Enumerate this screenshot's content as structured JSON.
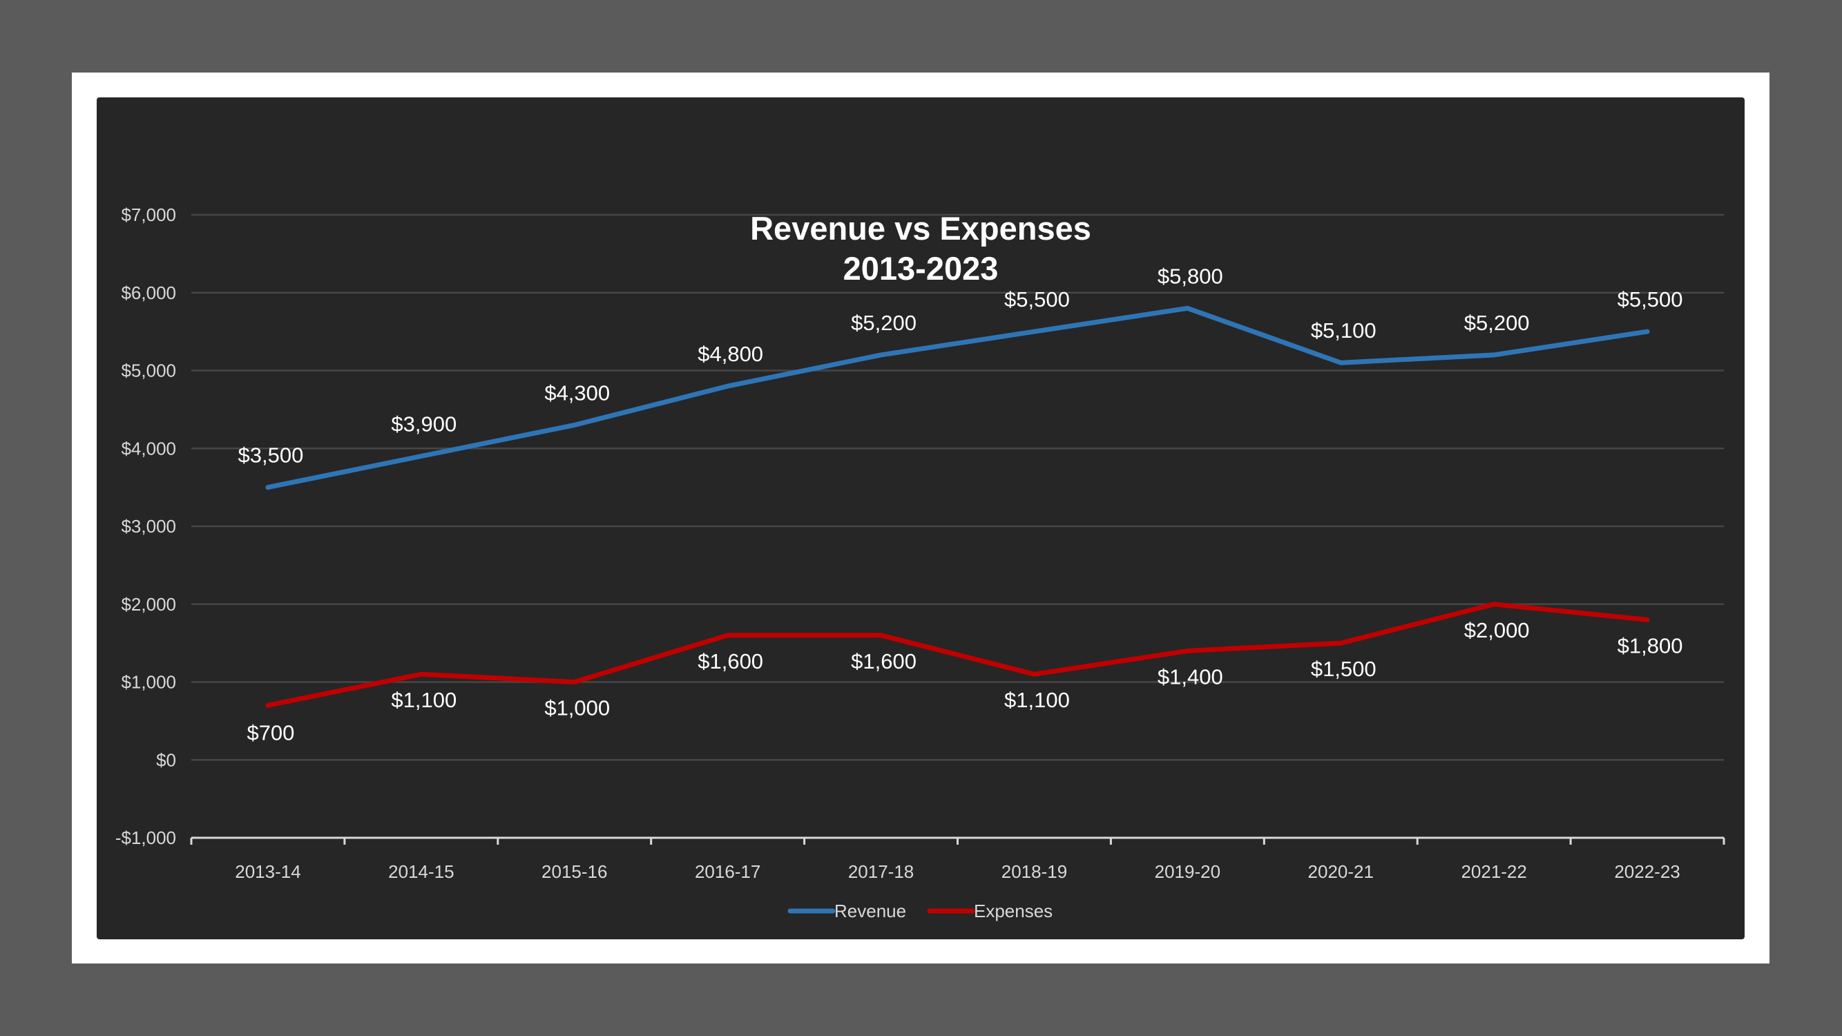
{
  "chart_data": {
    "type": "line",
    "title": "Revenue vs Expenses",
    "subtitle": "2013-2023",
    "xlabel": "",
    "ylabel": "",
    "categories": [
      "2013-14",
      "2014-15",
      "2015-16",
      "2016-17",
      "2017-18",
      "2018-19",
      "2019-20",
      "2020-21",
      "2021-22",
      "2022-23"
    ],
    "ylim": [
      -1000,
      7000
    ],
    "y_ticks": [
      -1000,
      0,
      1000,
      2000,
      3000,
      4000,
      5000,
      6000,
      7000
    ],
    "y_tick_labels": [
      "-$1,000",
      "$0",
      "$1,000",
      "$2,000",
      "$3,000",
      "$4,000",
      "$5,000",
      "$6,000",
      "$7,000"
    ],
    "grid": true,
    "legend_position": "bottom",
    "series": [
      {
        "name": "Revenue",
        "color": "#2e75b6",
        "values": [
          3500,
          3900,
          4300,
          4800,
          5200,
          5500,
          5800,
          5100,
          5200,
          5500
        ],
        "labels": [
          "$3,500",
          "$3,900",
          "$4,300",
          "$4,800",
          "$5,200",
          "$5,500",
          "$5,800",
          "$5,100",
          "$5,200",
          "$5,500"
        ]
      },
      {
        "name": "Expenses",
        "color": "#c00000",
        "values": [
          700,
          1100,
          1000,
          1600,
          1600,
          1100,
          1400,
          1500,
          2000,
          1800
        ],
        "labels": [
          "$700",
          "$1,100",
          "$1,000",
          "$1,600",
          "$1,600",
          "$1,100",
          "$1,400",
          "$1,500",
          "$2,000",
          "$1,800"
        ]
      }
    ]
  }
}
